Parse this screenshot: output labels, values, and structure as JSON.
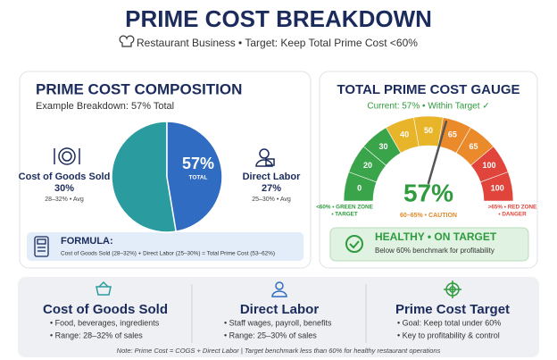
{
  "header": {
    "title": "PRIME COST BREAKDOWN",
    "subtitle": "Restaurant Business • Target: Keep Total Prime Cost <60%"
  },
  "chart_data": [
    {
      "type": "pie",
      "title": "PRIME COST COMPOSITION",
      "subtitle": "Example Breakdown: 57% Total",
      "center_label": "57%",
      "center_caption": "TOTAL",
      "categories": [
        "Cost of Goods Sold",
        "Direct Labor"
      ],
      "values": [
        30,
        27
      ],
      "value_labels": [
        "30%",
        "27%"
      ],
      "notes": [
        "28–32% • Avg",
        "25–30% • Avg"
      ],
      "colors": [
        "#2a9c9f",
        "#2f6cc2"
      ]
    },
    {
      "type": "gauge",
      "title": "TOTAL PRIME COST GAUGE",
      "subtitle": "Current: 57% • Within Target ✓",
      "value": 57,
      "value_label": "57%",
      "value_caption": "60–65% • CAUTION",
      "xlim": [
        0,
        100
      ],
      "categories": [
        "0",
        "20",
        "30",
        "40",
        "50",
        "65",
        "65",
        "100",
        "100"
      ],
      "colors": [
        "#3aa44a",
        "#3aa44a",
        "#3aa44a",
        "#e8b42a",
        "#e8b42a",
        "#ea8a2a",
        "#ea8a2a",
        "#e0443a",
        "#e0443a"
      ],
      "zone_labels": [
        [
          "<60% • GREEN ZONE",
          "• TARGET"
        ],
        [
          ">65% • RED ZONE",
          "• DANGER"
        ]
      ]
    }
  ],
  "formula": {
    "label": "FORMULA:",
    "text": "Cost of Goods Sold (28–32%) + Direct Labor (25–30%) = Total Prime Cost (53–62%)"
  },
  "status": {
    "title": "HEALTHY • ON TARGET",
    "text": "Below 60% benchmark for profitability"
  },
  "cards": [
    {
      "title": "Cost of Goods Sold",
      "items": [
        "• Food, beverages, ingredients",
        "• Range: 28–32% of sales"
      ]
    },
    {
      "title": "Direct Labor",
      "items": [
        "• Staff wages, payroll, benefits",
        "• Range: 25–30% of sales"
      ]
    },
    {
      "title": "Prime Cost Target",
      "items": [
        "• Goal: Keep total under 60%",
        "• Key to profitability & control"
      ]
    }
  ],
  "note": "Note: Prime Cost = COGS + Direct Labor | Target benchmark less than 60% for healthy restaurant operations"
}
